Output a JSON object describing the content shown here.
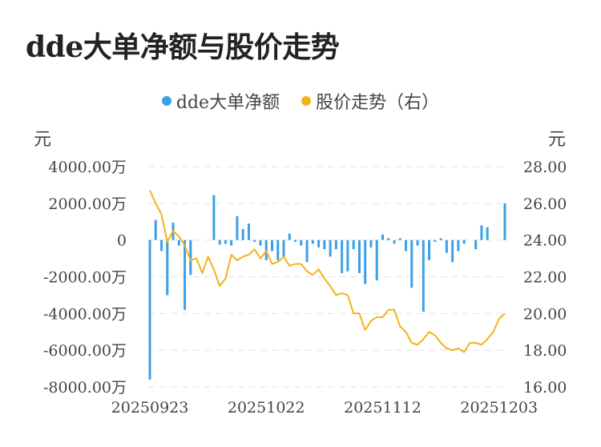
{
  "title": "dde大单净额与股价走势",
  "chart_data": {
    "type": "bar+line",
    "title": "dde大单净额与股价走势",
    "legend": [
      {
        "name": "dde大单净额",
        "color": "#3ba0e8"
      },
      {
        "name": "股价走势（右）",
        "color": "#f3b21b"
      }
    ],
    "left_axis": {
      "unit": "元",
      "ylim": [
        -8000,
        4000
      ],
      "ticks": [
        "4000.00万",
        "2000.00万",
        "0",
        "-2000.00万",
        "-4000.00万",
        "-6000.00万",
        "-8000.00万"
      ]
    },
    "right_axis": {
      "unit": "元",
      "ylim": [
        16,
        28
      ],
      "ticks": [
        "28.00",
        "26.00",
        "24.00",
        "22.00",
        "20.00",
        "18.00",
        "16.00"
      ]
    },
    "x_ticks": [
      "20250923",
      "20251022",
      "20251112",
      "20251203"
    ],
    "x_tick_index": [
      0,
      20,
      40,
      60
    ],
    "bar_color": "#3ba0e8",
    "line_color": "#f3b21b",
    "bars": [
      -7600,
      1100,
      -600,
      -3000,
      950,
      -300,
      -3800,
      -1900,
      0,
      0,
      0,
      2450,
      -250,
      -200,
      -300,
      1300,
      600,
      900,
      -100,
      -300,
      -1100,
      -600,
      -1100,
      -900,
      350,
      -100,
      -300,
      -1200,
      -200,
      -400,
      -500,
      -900,
      -500,
      -1800,
      -1700,
      -500,
      -1800,
      -2400,
      -400,
      -2200,
      300,
      100,
      -200,
      100,
      -600,
      -2600,
      -300,
      -3900,
      -1100,
      -100,
      100,
      -700,
      -1200,
      -600,
      -200,
      0,
      -500,
      800,
      700,
      0,
      0,
      2000
    ],
    "price": [
      26.7,
      26.0,
      25.4,
      23.9,
      24.5,
      24.2,
      23.7,
      22.9,
      23.0,
      22.2,
      23.1,
      22.4,
      21.5,
      21.9,
      23.2,
      22.9,
      23.1,
      23.2,
      23.5,
      23.0,
      23.4,
      22.7,
      22.8,
      23.1,
      22.6,
      22.7,
      22.7,
      22.3,
      22.1,
      22.4,
      21.9,
      21.5,
      21.0,
      21.1,
      21.0,
      20.0,
      20.0,
      19.1,
      19.6,
      19.8,
      19.8,
      20.2,
      20.2,
      19.3,
      19.0,
      18.4,
      18.3,
      18.6,
      19.0,
      18.8,
      18.4,
      18.1,
      18.0,
      18.1,
      17.9,
      18.4,
      18.4,
      18.3,
      18.6,
      19.0,
      19.7,
      20.0
    ]
  }
}
